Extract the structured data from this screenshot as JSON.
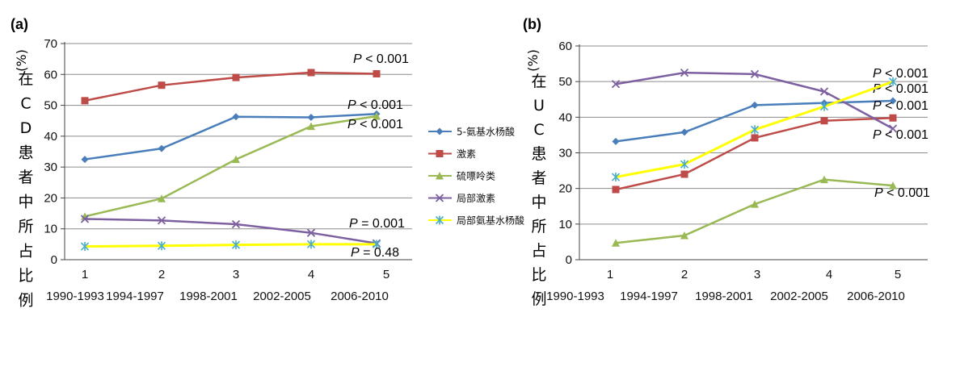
{
  "chart_data": [
    {
      "type": "line",
      "panel_label": "(a)",
      "ylabel_unit": "(%)",
      "ylabel": "在CD患者中所占比例",
      "ylim": [
        0,
        70
      ],
      "yticks": [
        "0",
        "10",
        "20",
        "30",
        "40",
        "50",
        "60",
        "70"
      ],
      "x": [
        "1",
        "2",
        "3",
        "4",
        "5"
      ],
      "categories": [
        "1990-1993",
        "1994-1997",
        "1998-2001",
        "2002-2005",
        "2006-2010"
      ],
      "grid": true,
      "series": [
        {
          "name": "5-氨基水杨酸",
          "color": "#4a7ebb",
          "marker": "diamond",
          "values": [
            32.5,
            36,
            46.3,
            46.1,
            47.2
          ],
          "annotation": "P < 0.001"
        },
        {
          "name": "激素",
          "color": "#be4b48",
          "marker": "square",
          "values": [
            51.5,
            56.5,
            59,
            60.6,
            60.2
          ],
          "annotation": "P < 0.001"
        },
        {
          "name": "硫嘌呤类",
          "color": "#98b954",
          "marker": "triangle",
          "values": [
            14,
            19.8,
            32.5,
            43.2,
            46.5
          ],
          "annotation": "P < 0.001"
        },
        {
          "name": "局部激素",
          "color": "#7d60a0",
          "marker": "x",
          "values": [
            13.2,
            12.7,
            11.5,
            8.7,
            5.3
          ],
          "annotation": "P = 0.001"
        },
        {
          "name": "局部氨基水杨酸",
          "color": "#ffff00",
          "marker": "star",
          "values": [
            4.3,
            4.5,
            4.8,
            5,
            5
          ],
          "annotation": "P = 0.48"
        }
      ]
    },
    {
      "type": "line",
      "panel_label": "(b)",
      "ylabel_unit": "(%)",
      "ylabel": "在UC患者中所占比例",
      "ylim": [
        0,
        60
      ],
      "yticks": [
        "0",
        "10",
        "20",
        "30",
        "40",
        "50",
        "60"
      ],
      "x": [
        "1",
        "2",
        "3",
        "4",
        "5"
      ],
      "categories": [
        "1990-1993",
        "1994-1997",
        "1998-2001",
        "2002-2005",
        "2006-2010"
      ],
      "grid": true,
      "series": [
        {
          "name": "5-氨基水杨酸",
          "color": "#4a7ebb",
          "marker": "diamond",
          "values": [
            33.2,
            35.8,
            43.4,
            44,
            44.6
          ],
          "annotation": "P < 0.001"
        },
        {
          "name": "激素",
          "color": "#be4b48",
          "marker": "square",
          "values": [
            19.7,
            24,
            34.2,
            39,
            39.8
          ],
          "annotation": "P < 0.001"
        },
        {
          "name": "硫嘌呤类",
          "color": "#98b954",
          "marker": "triangle",
          "values": [
            4.7,
            6.8,
            15.6,
            22.5,
            20.8
          ],
          "annotation": "P < 0.001"
        },
        {
          "name": "局部激素",
          "color": "#7d60a0",
          "marker": "x",
          "values": [
            49.3,
            52.5,
            52.1,
            47.2,
            36.8
          ],
          "annotation": "P < 0.001"
        },
        {
          "name": "局部氨基水杨酸",
          "color": "#ffff00",
          "marker": "star",
          "values": [
            23.2,
            26.8,
            36.5,
            43,
            50
          ],
          "annotation": "P < 0.001"
        }
      ]
    }
  ],
  "legend": {
    "placement": "between-panels",
    "entries": [
      "5-氨基水杨酸",
      "激素",
      "硫嘌呤类",
      "局部激素",
      "局部氨基水杨酸"
    ]
  }
}
